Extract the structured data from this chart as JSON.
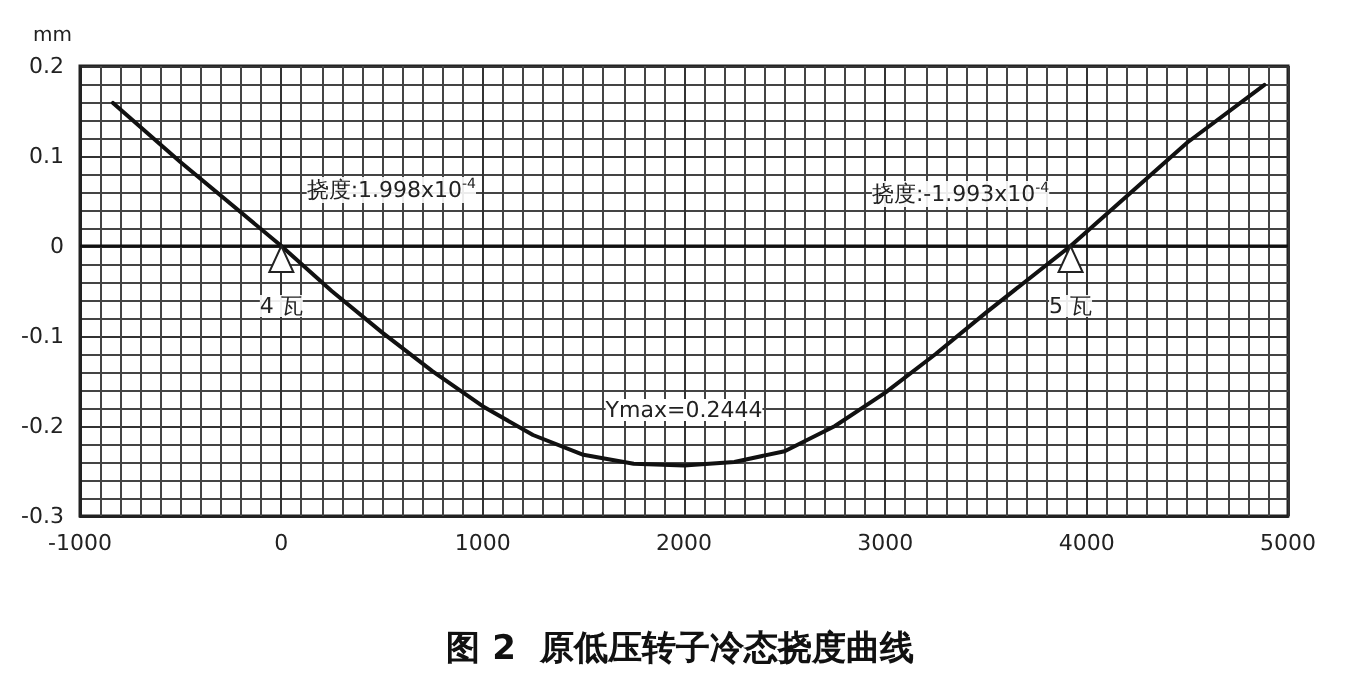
{
  "chart_data": {
    "type": "line",
    "title": "图 2  原低压转子冷态挠度曲线",
    "ylabel": "mm",
    "x": [
      -836,
      -500,
      0,
      250,
      500,
      750,
      1000,
      1250,
      1500,
      1750,
      2000,
      2250,
      2500,
      2750,
      3000,
      3250,
      3500,
      3920,
      4500,
      4883
    ],
    "series": [
      {
        "color": "#111111",
        "values": [
          0.159,
          0.093,
          0,
          -0.05,
          -0.096,
          -0.139,
          -0.178,
          -0.21,
          -0.232,
          -0.242,
          -0.244,
          -0.24,
          -0.228,
          -0.2,
          -0.163,
          -0.12,
          -0.074,
          0,
          0.115,
          0.179
        ]
      }
    ],
    "xlim": [
      -1000,
      5000
    ],
    "xticks": [
      -1000,
      0,
      1000,
      2000,
      3000,
      4000,
      5000
    ],
    "ylim": [
      -0.3,
      0.2
    ],
    "yticks": [
      -0.3,
      -0.2,
      -0.1,
      0,
      0.1,
      0.2
    ],
    "grid": true,
    "marker": "none",
    "line_style": "solid",
    "ref_lines": [
      {
        "axis": "y",
        "value": 0,
        "color": "#111111"
      }
    ],
    "annotations": [
      {
        "text": "挠度:1.998x10$^{-4}$",
        "x": 0,
        "y": 0
      },
      {
        "text": "4 瓦",
        "x": 0,
        "y": 0
      },
      {
        "text": "挠度:-1.993x10$^{-4}$",
        "x": 3920,
        "y": 0
      },
      {
        "text": "5 瓦",
        "x": 3920,
        "y": 0
      },
      {
        "text": "Ymax=0.2444",
        "x": 2000,
        "y": -0.2444
      }
    ]
  }
}
